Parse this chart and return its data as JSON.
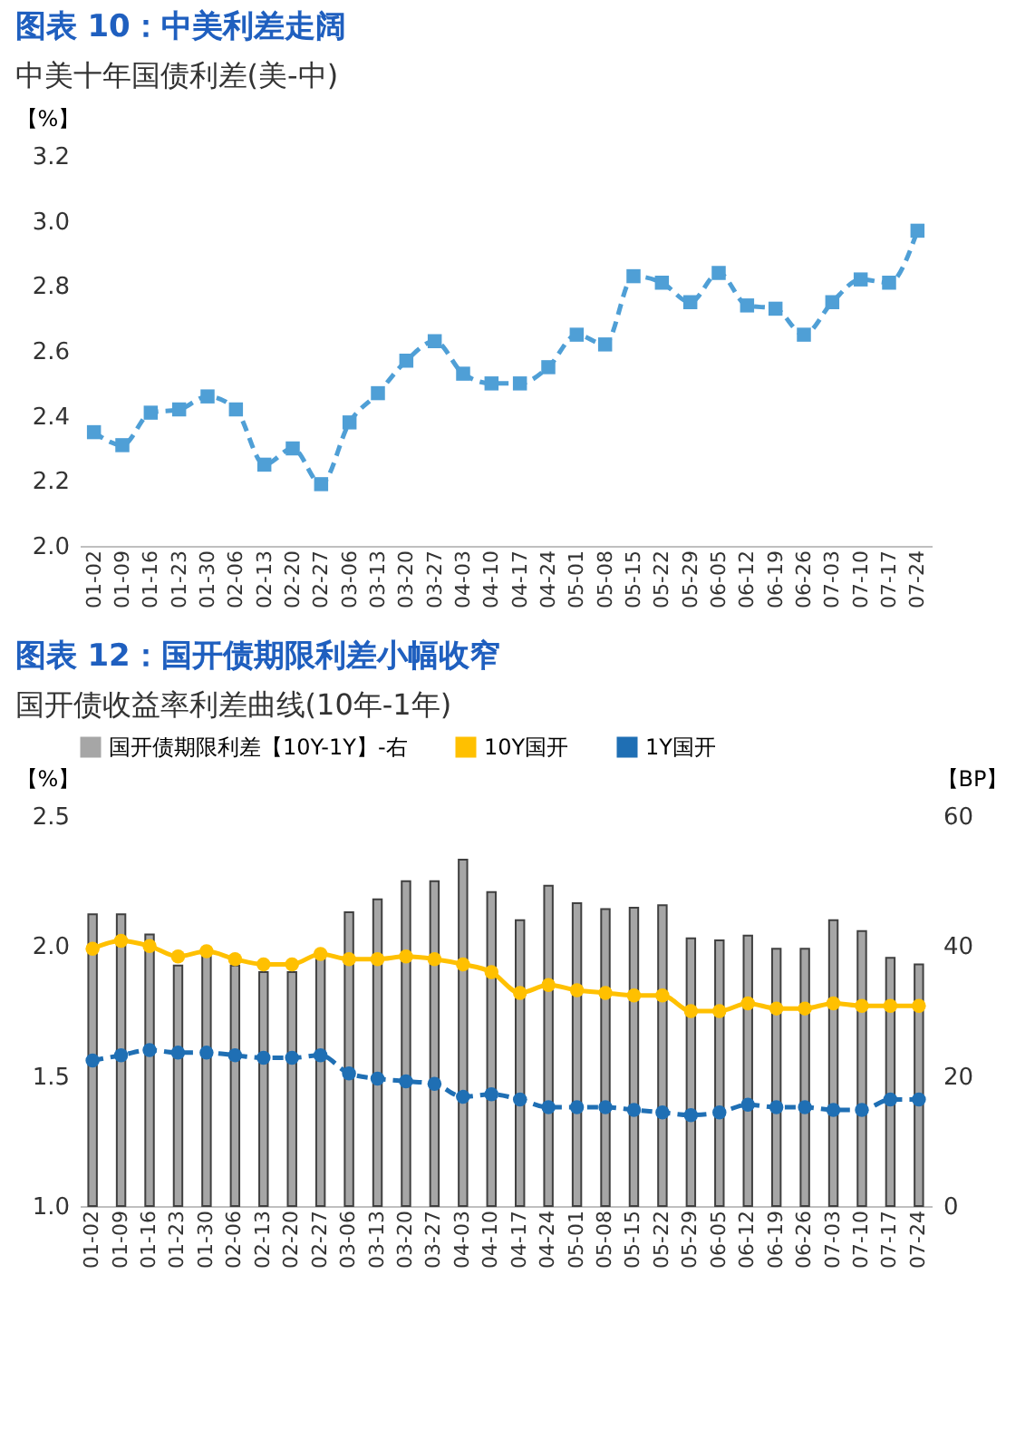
{
  "chart_data": [
    {
      "type": "line",
      "title": "图表 10：中美利差走阔",
      "subtitle": "中美十年国债利差(美-中)",
      "ylabel": "【%】",
      "categories": [
        "01-02",
        "01-09",
        "01-16",
        "01-23",
        "01-30",
        "02-06",
        "02-13",
        "02-20",
        "02-27",
        "03-06",
        "03-13",
        "03-20",
        "03-27",
        "04-03",
        "04-10",
        "04-17",
        "04-24",
        "05-01",
        "05-08",
        "05-15",
        "05-22",
        "05-29",
        "06-05",
        "06-12",
        "06-19",
        "06-26",
        "07-03",
        "07-10",
        "07-17",
        "07-24"
      ],
      "series": [
        {
          "color": "#4f9fd6",
          "values": [
            2.35,
            2.31,
            2.41,
            2.42,
            2.46,
            2.42,
            2.25,
            2.3,
            2.19,
            2.38,
            2.47,
            2.57,
            2.63,
            2.53,
            2.5,
            2.5,
            2.55,
            2.65,
            2.62,
            2.83,
            2.81,
            2.75,
            2.84,
            2.74,
            2.73,
            2.65,
            2.75,
            2.82,
            2.81,
            2.97
          ]
        }
      ],
      "ylim": [
        2.0,
        3.2
      ],
      "yticks": [
        {
          "value": 2.0,
          "label": "2.0"
        },
        2.2,
        2.4,
        2.6,
        2.8,
        {
          "value": 3.0,
          "label": "3.0"
        },
        3.2
      ],
      "marker": "square",
      "line_style": "dashed",
      "grid": false,
      "legend": false
    },
    {
      "type": "line",
      "title": "图表 12：国开债期限利差小幅收窄",
      "subtitle": "国开债收益率利差曲线(10年-1年)",
      "ylabel": "【%】",
      "y2label": "【BP】",
      "categories": [
        "01-02",
        "01-09",
        "01-16",
        "01-23",
        "01-30",
        "02-06",
        "02-13",
        "02-20",
        "02-27",
        "03-06",
        "03-13",
        "03-20",
        "03-27",
        "04-03",
        "04-10",
        "04-17",
        "04-24",
        "05-01",
        "05-08",
        "05-15",
        "05-22",
        "05-29",
        "06-05",
        "06-12",
        "06-19",
        "06-26",
        "07-03",
        "07-10",
        "07-17",
        "07-24"
      ],
      "series": [
        {
          "name": "国开债期限利差【10Y-1Y】-右",
          "type": "bar",
          "axis": "y2",
          "color": "#a6a6a6",
          "values": [
            44.9,
            44.9,
            41.8,
            37,
            39,
            37,
            36,
            36,
            39,
            45.2,
            47.2,
            50.0,
            50.0,
            53.3,
            48.3,
            44.0,
            49.3,
            46.6,
            45.7,
            45.9,
            46.3,
            41.2,
            40.9,
            41.6,
            39.6,
            39.6,
            44.0,
            42.3,
            38.2,
            37.2
          ]
        },
        {
          "name": "10Y国开",
          "type": "line",
          "color": "#ffc000",
          "line_style": "solid",
          "values": [
            1.99,
            2.02,
            2.0,
            1.96,
            1.98,
            1.95,
            1.93,
            1.93,
            1.97,
            1.95,
            1.95,
            1.96,
            1.95,
            1.93,
            1.9,
            1.82,
            1.85,
            1.83,
            1.82,
            1.81,
            1.81,
            1.75,
            1.75,
            1.78,
            1.76,
            1.76,
            1.78,
            1.77,
            1.77,
            1.77
          ]
        },
        {
          "name": "1Y国开",
          "type": "line",
          "color": "#1f6fb4",
          "line_style": "dashed",
          "values": [
            1.56,
            1.58,
            1.6,
            1.59,
            1.59,
            1.58,
            1.57,
            1.57,
            1.58,
            1.51,
            1.49,
            1.48,
            1.47,
            1.42,
            1.43,
            1.41,
            1.38,
            1.38,
            1.38,
            1.37,
            1.36,
            1.35,
            1.36,
            1.39,
            1.38,
            1.38,
            1.37,
            1.37,
            1.41,
            1.41
          ]
        }
      ],
      "ylim": [
        1.0,
        2.5
      ],
      "yticks": [
        {
          "value": 1.0,
          "label": "1.0"
        },
        1.5,
        {
          "value": 2.0,
          "label": "2.0"
        },
        2.5
      ],
      "y2lim": [
        0,
        60
      ],
      "y2ticks": [
        0,
        20,
        40,
        60
      ],
      "marker": "circle",
      "grid": false,
      "legend": "top"
    }
  ]
}
